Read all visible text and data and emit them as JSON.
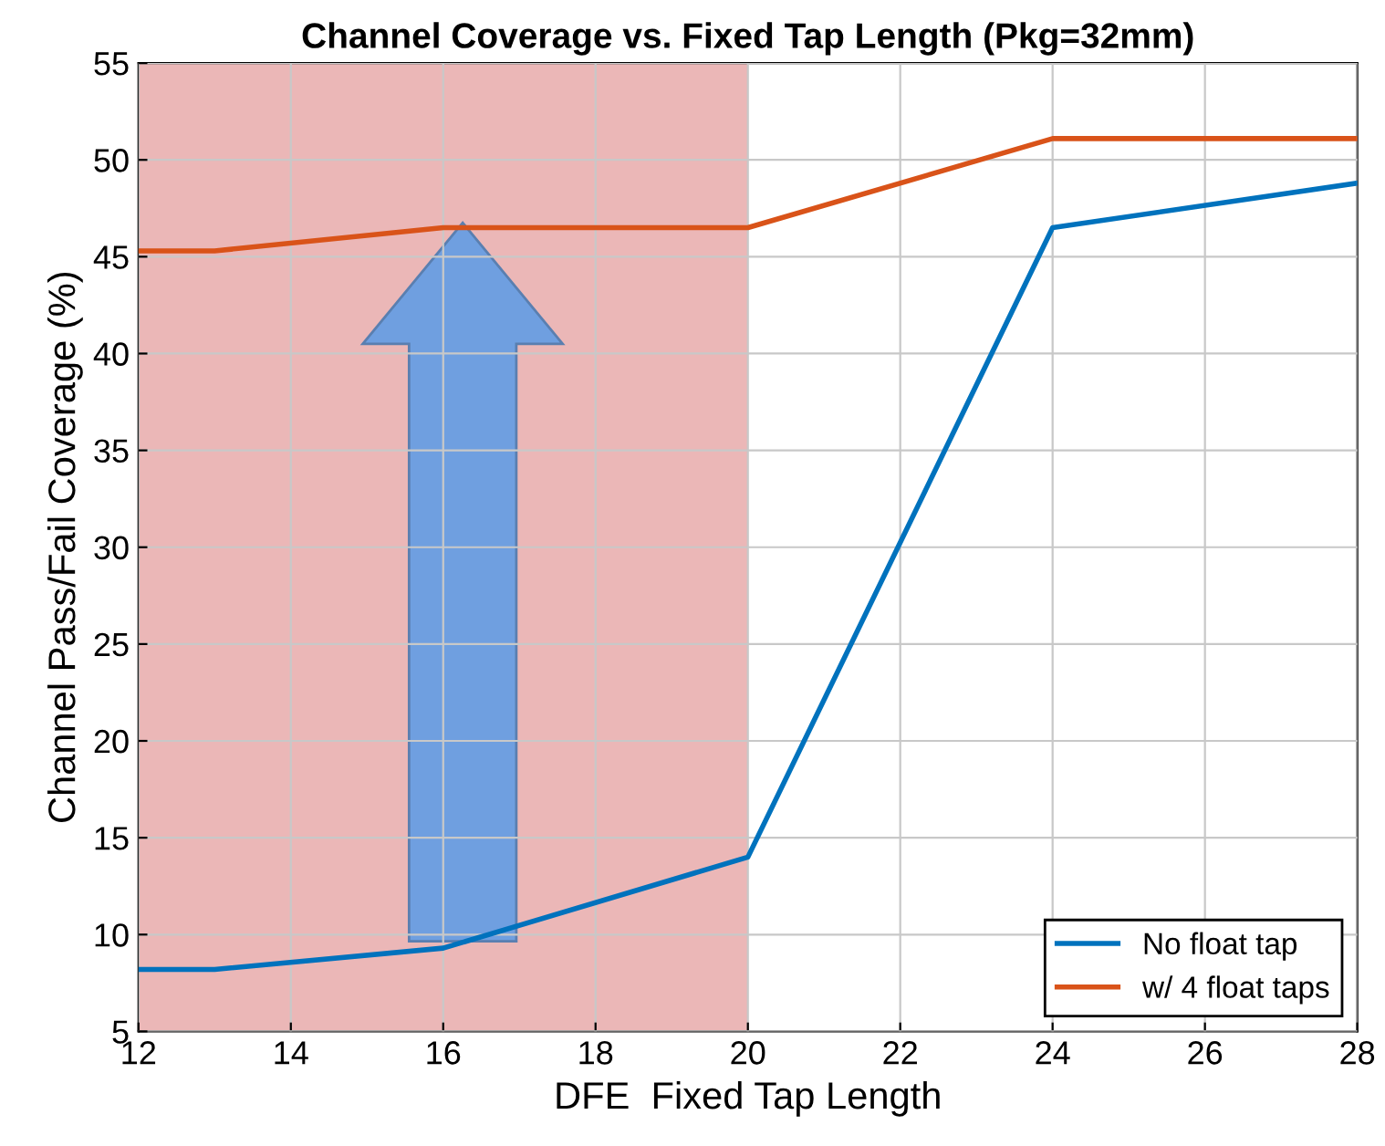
{
  "chart_data": {
    "type": "line",
    "title": "Channel Coverage vs. Fixed Tap Length (Pkg=32mm)",
    "xlabel": "DFE  Fixed Tap Length",
    "ylabel": "Channel Pass/Fail Coverage (%)",
    "x": [
      12,
      13,
      16,
      20,
      24,
      28
    ],
    "series": [
      {
        "name": "No float tap",
        "color": "#0072bd",
        "values": [
          8.2,
          8.2,
          9.3,
          14,
          46.5,
          48.8
        ]
      },
      {
        "name": "w/ 4 float taps",
        "color": "#d95319",
        "values": [
          45.3,
          45.3,
          46.5,
          46.5,
          51.1,
          51.1
        ]
      }
    ],
    "xlim": [
      12,
      28
    ],
    "xticks": [
      12,
      14,
      16,
      18,
      20,
      22,
      24,
      26,
      28
    ],
    "ylim": [
      5,
      55
    ],
    "yticks": [
      5,
      10,
      15,
      20,
      25,
      30,
      35,
      40,
      45,
      50,
      55
    ],
    "bands": [
      {
        "axis": "x",
        "from": 12,
        "to": 20,
        "color": "#ebb7b7"
      }
    ],
    "grid": true,
    "legend": "bottom right",
    "line_style": "solid",
    "marker": "none"
  }
}
